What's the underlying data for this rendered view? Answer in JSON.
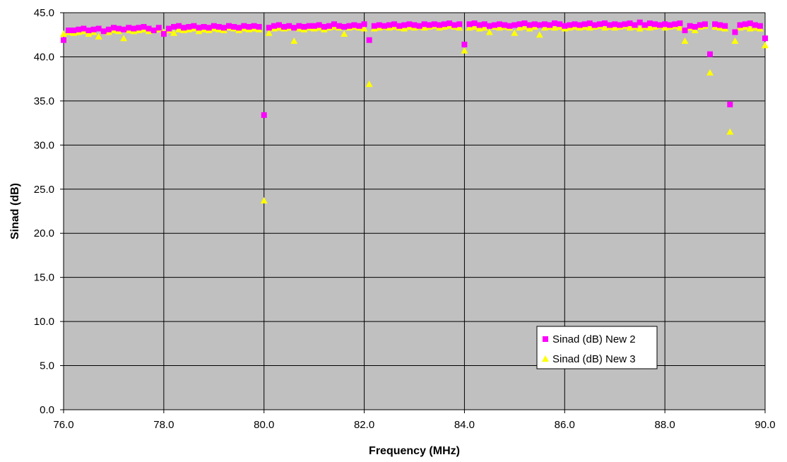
{
  "chart_data": {
    "type": "scatter",
    "title": "",
    "xlabel": "Frequency (MHz)",
    "ylabel": "Sinad (dB)",
    "xlim": [
      76.0,
      90.0
    ],
    "ylim": [
      0.0,
      45.0
    ],
    "x_ticks": [
      "76.0",
      "78.0",
      "80.0",
      "82.0",
      "84.0",
      "86.0",
      "88.0",
      "90.0"
    ],
    "y_ticks": [
      "0.0",
      "5.0",
      "10.0",
      "15.0",
      "20.0",
      "25.0",
      "30.0",
      "35.0",
      "40.0",
      "45.0"
    ],
    "grid": "horizontal and vertical major gridlines",
    "legend_position": "lower-right",
    "plot_background": "#c0c0c0",
    "series": [
      {
        "name": "Sinad (dB) New 2",
        "marker": "square",
        "color": "#ff00ff",
        "x": [
          76.0,
          76.1,
          76.2,
          76.3,
          76.4,
          76.5,
          76.6,
          76.7,
          76.8,
          76.9,
          77.0,
          77.1,
          77.2,
          77.3,
          77.4,
          77.5,
          77.6,
          77.7,
          77.8,
          77.9,
          78.0,
          78.1,
          78.2,
          78.3,
          78.4,
          78.5,
          78.6,
          78.7,
          78.8,
          78.9,
          79.0,
          79.1,
          79.2,
          79.3,
          79.4,
          79.5,
          79.6,
          79.7,
          79.8,
          79.9,
          80.0,
          80.1,
          80.2,
          80.3,
          80.4,
          80.5,
          80.6,
          80.7,
          80.8,
          80.9,
          81.0,
          81.1,
          81.2,
          81.3,
          81.4,
          81.5,
          81.6,
          81.7,
          81.8,
          81.9,
          82.0,
          82.1,
          82.2,
          82.3,
          82.4,
          82.5,
          82.6,
          82.7,
          82.8,
          82.9,
          83.0,
          83.1,
          83.2,
          83.3,
          83.4,
          83.5,
          83.6,
          83.7,
          83.8,
          83.9,
          84.0,
          84.1,
          84.2,
          84.3,
          84.4,
          84.5,
          84.6,
          84.7,
          84.8,
          84.9,
          85.0,
          85.1,
          85.2,
          85.3,
          85.4,
          85.5,
          85.6,
          85.7,
          85.8,
          85.9,
          86.0,
          86.1,
          86.2,
          86.3,
          86.4,
          86.5,
          86.6,
          86.7,
          86.8,
          86.9,
          87.0,
          87.1,
          87.2,
          87.3,
          87.4,
          87.5,
          87.6,
          87.7,
          87.8,
          87.9,
          88.0,
          88.1,
          88.2,
          88.3,
          88.4,
          88.5,
          88.6,
          88.7,
          88.8,
          88.9,
          89.0,
          89.1,
          89.2,
          89.3,
          89.4,
          89.5,
          89.6,
          89.7,
          89.8,
          89.9,
          90.0
        ],
        "y": [
          41.9,
          43.0,
          43.0,
          43.1,
          43.2,
          43.0,
          43.1,
          43.2,
          42.9,
          43.1,
          43.3,
          43.2,
          43.1,
          43.3,
          43.2,
          43.3,
          43.4,
          43.2,
          43.0,
          43.3,
          42.6,
          43.2,
          43.4,
          43.5,
          43.3,
          43.4,
          43.5,
          43.3,
          43.4,
          43.3,
          43.5,
          43.4,
          43.3,
          43.5,
          43.4,
          43.3,
          43.5,
          43.4,
          43.5,
          43.4,
          33.4,
          43.3,
          43.5,
          43.6,
          43.4,
          43.5,
          43.3,
          43.5,
          43.4,
          43.5,
          43.5,
          43.6,
          43.4,
          43.5,
          43.7,
          43.5,
          43.4,
          43.5,
          43.6,
          43.5,
          43.7,
          41.9,
          43.5,
          43.6,
          43.5,
          43.6,
          43.7,
          43.5,
          43.6,
          43.7,
          43.6,
          43.5,
          43.7,
          43.6,
          43.7,
          43.6,
          43.7,
          43.8,
          43.6,
          43.7,
          41.4,
          43.7,
          43.8,
          43.6,
          43.7,
          43.5,
          43.6,
          43.7,
          43.6,
          43.5,
          43.6,
          43.7,
          43.8,
          43.6,
          43.7,
          43.6,
          43.7,
          43.6,
          43.8,
          43.7,
          43.5,
          43.6,
          43.7,
          43.6,
          43.7,
          43.8,
          43.6,
          43.7,
          43.8,
          43.6,
          43.7,
          43.6,
          43.7,
          43.8,
          43.6,
          43.9,
          43.6,
          43.8,
          43.7,
          43.6,
          43.7,
          43.6,
          43.7,
          43.8,
          43.0,
          43.5,
          43.4,
          43.6,
          43.7,
          40.3,
          43.7,
          43.6,
          43.5,
          34.6,
          42.8,
          43.6,
          43.7,
          43.8,
          43.6,
          43.5,
          42.1
        ]
      },
      {
        "name": "Sinad (dB) New 3",
        "marker": "triangle",
        "color": "#ffff00",
        "x": [
          76.0,
          76.1,
          76.2,
          76.3,
          76.4,
          76.5,
          76.6,
          76.7,
          76.8,
          76.9,
          77.0,
          77.1,
          77.2,
          77.3,
          77.4,
          77.5,
          77.6,
          77.7,
          77.8,
          77.9,
          78.0,
          78.1,
          78.2,
          78.3,
          78.4,
          78.5,
          78.6,
          78.7,
          78.8,
          78.9,
          79.0,
          79.1,
          79.2,
          79.3,
          79.4,
          79.5,
          79.6,
          79.7,
          79.8,
          79.9,
          80.0,
          80.1,
          80.2,
          80.3,
          80.4,
          80.5,
          80.6,
          80.7,
          80.8,
          80.9,
          81.0,
          81.1,
          81.2,
          81.3,
          81.4,
          81.5,
          81.6,
          81.7,
          81.8,
          81.9,
          82.0,
          82.1,
          82.2,
          82.3,
          82.4,
          82.5,
          82.6,
          82.7,
          82.8,
          82.9,
          83.0,
          83.1,
          83.2,
          83.3,
          83.4,
          83.5,
          83.6,
          83.7,
          83.8,
          83.9,
          84.0,
          84.1,
          84.2,
          84.3,
          84.4,
          84.5,
          84.6,
          84.7,
          84.8,
          84.9,
          85.0,
          85.1,
          85.2,
          85.3,
          85.4,
          85.5,
          85.6,
          85.7,
          85.8,
          85.9,
          86.0,
          86.1,
          86.2,
          86.3,
          86.4,
          86.5,
          86.6,
          86.7,
          86.8,
          86.9,
          87.0,
          87.1,
          87.2,
          87.3,
          87.4,
          87.5,
          87.6,
          87.7,
          87.8,
          87.9,
          88.0,
          88.1,
          88.2,
          88.3,
          88.4,
          88.5,
          88.6,
          88.7,
          88.8,
          88.9,
          89.0,
          89.1,
          89.2,
          89.3,
          89.4,
          89.5,
          89.6,
          89.7,
          89.8,
          89.9,
          90.0
        ],
        "y": [
          42.6,
          42.8,
          42.7,
          42.8,
          42.9,
          42.6,
          42.8,
          42.3,
          42.9,
          42.8,
          43.0,
          42.9,
          42.1,
          43.0,
          42.9,
          43.0,
          43.1,
          42.9,
          43.0,
          43.1,
          42.8,
          43.0,
          42.7,
          43.1,
          43.0,
          43.1,
          43.2,
          42.9,
          43.1,
          43.0,
          43.2,
          43.1,
          43.0,
          43.3,
          43.2,
          43.0,
          43.2,
          43.1,
          43.2,
          43.1,
          23.7,
          42.7,
          43.2,
          43.3,
          43.2,
          43.3,
          41.8,
          43.2,
          43.1,
          43.3,
          43.2,
          43.3,
          43.1,
          43.3,
          43.4,
          43.3,
          42.6,
          43.3,
          43.4,
          43.3,
          43.2,
          36.9,
          43.2,
          43.3,
          43.4,
          43.3,
          43.4,
          43.3,
          43.2,
          43.4,
          43.3,
          43.4,
          43.3,
          43.4,
          43.5,
          43.3,
          43.4,
          43.5,
          43.4,
          43.3,
          40.7,
          43.3,
          43.4,
          43.2,
          43.3,
          42.8,
          43.4,
          43.3,
          43.4,
          43.3,
          42.7,
          43.3,
          43.4,
          43.2,
          43.4,
          42.5,
          43.3,
          43.4,
          43.3,
          43.4,
          43.2,
          43.3,
          43.4,
          43.3,
          43.4,
          43.3,
          43.4,
          43.5,
          43.3,
          43.4,
          43.3,
          43.4,
          43.5,
          43.3,
          43.4,
          43.2,
          43.4,
          43.3,
          43.4,
          43.5,
          43.3,
          43.4,
          43.5,
          43.3,
          41.8,
          43.3,
          43.0,
          43.4,
          43.5,
          38.2,
          43.4,
          43.3,
          43.2,
          31.5,
          41.8,
          43.3,
          43.4,
          43.2,
          43.3,
          43.2,
          41.3
        ]
      }
    ]
  }
}
